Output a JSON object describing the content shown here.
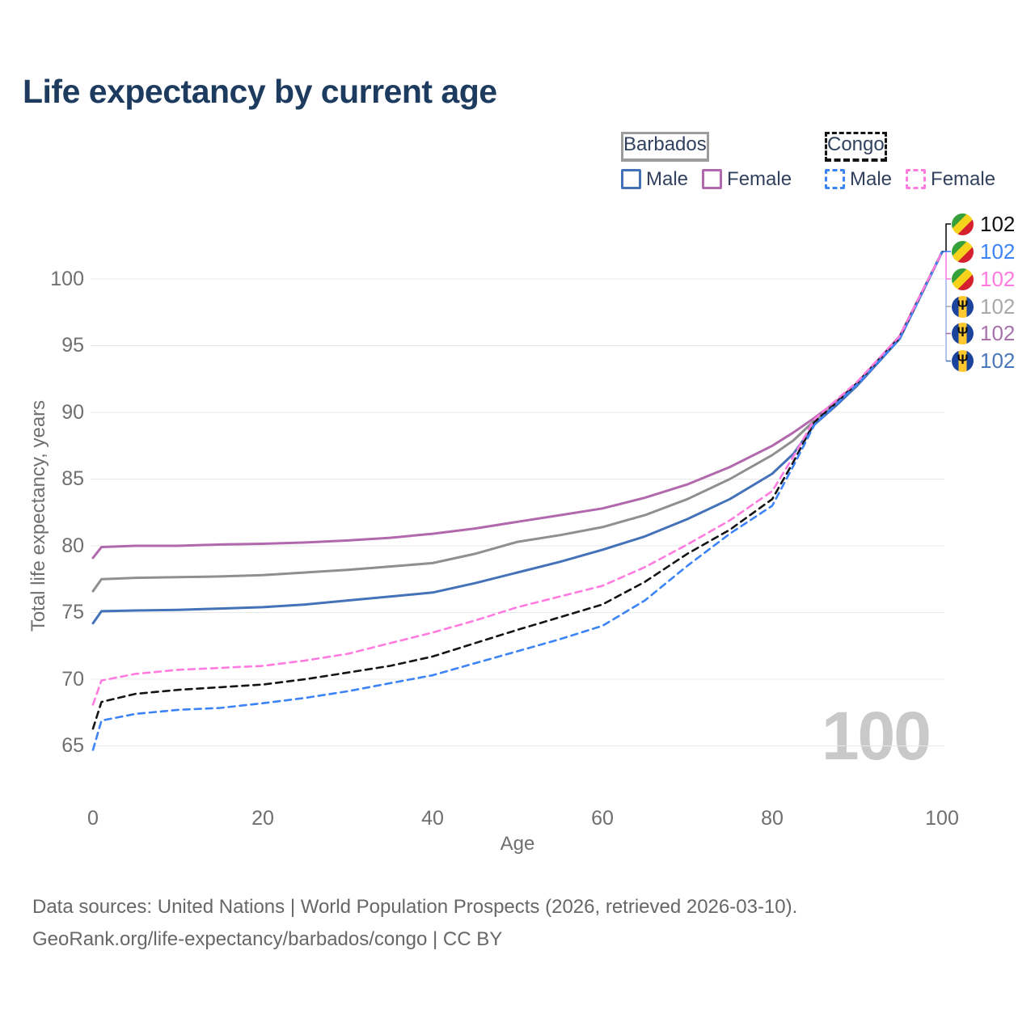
{
  "title": "Life expectancy by current age",
  "legend": {
    "groups": [
      {
        "label": "Barbados",
        "line_color": "#9c9c9c",
        "line_style": "solid",
        "items": [
          {
            "label": "Male",
            "color": "#4472b8",
            "style": "solid"
          },
          {
            "label": "Female",
            "color": "#b168ad",
            "style": "solid"
          }
        ]
      },
      {
        "label": "Congo",
        "line_color": "#141414",
        "line_style": "dashed",
        "items": [
          {
            "label": "Male",
            "color": "#3c83f6",
            "style": "dashed"
          },
          {
            "label": "Female",
            "color": "#ff7bdf",
            "style": "dashed"
          }
        ]
      }
    ]
  },
  "chart_data": {
    "type": "line",
    "title": "Life expectancy by current age",
    "xlabel": "Age",
    "ylabel": "Total life expectancy, years",
    "xlim": [
      0,
      100
    ],
    "ylim": [
      64,
      103
    ],
    "xticks": [
      0,
      20,
      40,
      60,
      80,
      100
    ],
    "yticks": [
      65,
      70,
      75,
      80,
      85,
      90,
      95,
      100
    ],
    "grid": "horizontal-only",
    "legend_position": "top-right",
    "age_indicator": "100",
    "x": [
      0,
      1,
      5,
      10,
      15,
      20,
      25,
      30,
      35,
      40,
      45,
      50,
      55,
      60,
      65,
      70,
      75,
      80,
      82.5,
      85,
      87.5,
      90,
      95,
      100
    ],
    "series": [
      {
        "name": "Barbados Female",
        "country": "Barbados",
        "sex": "Female",
        "color": "#b168ad",
        "line": "solid",
        "values": [
          79.1,
          79.9,
          80.0,
          80.0,
          80.1,
          80.15,
          80.25,
          80.4,
          80.6,
          80.9,
          81.3,
          81.8,
          82.3,
          82.8,
          83.6,
          84.6,
          85.9,
          87.5,
          88.5,
          89.6,
          90.8,
          92.2,
          95.7,
          102
        ]
      },
      {
        "name": "Barbados Both sexes",
        "country": "Barbados",
        "sex": "Both sexes",
        "color": "#8f8f8f",
        "line": "solid",
        "values": [
          76.6,
          77.5,
          77.6,
          77.65,
          77.7,
          77.8,
          78.0,
          78.2,
          78.45,
          78.7,
          79.4,
          80.3,
          80.8,
          81.4,
          82.3,
          83.5,
          85.0,
          86.8,
          87.9,
          89.4,
          90.6,
          92.1,
          95.6,
          102
        ]
      },
      {
        "name": "Barbados Male",
        "country": "Barbados",
        "sex": "Male",
        "color": "#4472b8",
        "line": "solid",
        "values": [
          74.2,
          75.1,
          75.15,
          75.2,
          75.3,
          75.4,
          75.6,
          75.9,
          76.2,
          76.5,
          77.2,
          78.0,
          78.8,
          79.7,
          80.7,
          82.0,
          83.5,
          85.4,
          86.9,
          89.1,
          90.5,
          92.0,
          95.5,
          102
        ]
      },
      {
        "name": "Congo Both sexes",
        "country": "Congo",
        "sex": "Both sexes",
        "color": "#141414",
        "line": "dashed",
        "values": [
          66.3,
          68.3,
          68.9,
          69.2,
          69.4,
          69.6,
          70.0,
          70.5,
          71.0,
          71.7,
          72.7,
          73.7,
          74.65,
          75.6,
          77.3,
          79.4,
          81.2,
          83.5,
          86.3,
          89.3,
          90.7,
          92.2,
          95.6,
          102
        ]
      },
      {
        "name": "Congo Male",
        "country": "Congo",
        "sex": "Male",
        "color": "#3c83f6",
        "line": "dashed",
        "values": [
          64.7,
          66.9,
          67.4,
          67.7,
          67.85,
          68.2,
          68.6,
          69.1,
          69.7,
          70.3,
          71.2,
          72.1,
          73.0,
          74.0,
          75.9,
          78.5,
          80.9,
          83.0,
          86.0,
          89.1,
          90.6,
          92.1,
          95.5,
          102
        ]
      },
      {
        "name": "Congo Female",
        "country": "Congo",
        "sex": "Female",
        "color": "#ff7bdf",
        "line": "dashed",
        "values": [
          68.1,
          69.9,
          70.4,
          70.7,
          70.85,
          71.0,
          71.4,
          71.9,
          72.7,
          73.5,
          74.4,
          75.4,
          76.2,
          77.0,
          78.4,
          80.1,
          81.9,
          84.1,
          86.7,
          89.5,
          90.9,
          92.3,
          95.7,
          102
        ]
      }
    ]
  },
  "end_labels": [
    {
      "flag": "congo",
      "country": "Congo",
      "value": "102",
      "color": "#111111"
    },
    {
      "flag": "congo",
      "country": "Congo",
      "value": "102",
      "color": "#3c83f6"
    },
    {
      "flag": "congo",
      "country": "Congo",
      "value": "102",
      "color": "#ff7bdf"
    },
    {
      "flag": "barbados",
      "country": "Barbados",
      "value": "102",
      "color": "#a9a9a9"
    },
    {
      "flag": "barbados",
      "country": "Barbados",
      "value": "102",
      "color": "#a873ad"
    },
    {
      "flag": "barbados",
      "country": "Barbados",
      "value": "102",
      "color": "#4a78bc"
    }
  ],
  "footer": {
    "line1": "Data sources: United Nations | World Population Prospects (2026, retrieved 2026-03-10).",
    "line2": "GeoRank.org/life-expectancy/barbados/congo | CC BY"
  }
}
